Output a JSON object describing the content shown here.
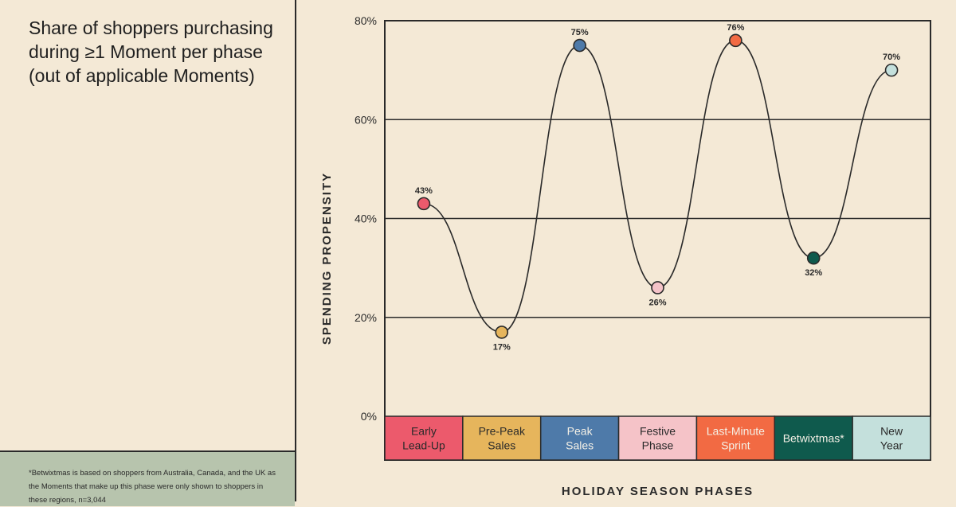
{
  "title": "Share of shoppers purchasing\nduring ≥1 Moment per phase\n(out of applicable Moments)",
  "footnote": "*Betwixtmas is based on shoppers from Australia, Canada, and the UK as the Moments that make up this phase were only shown to shoppers in these regions, n=3,044",
  "chart_data": {
    "type": "line",
    "title": "Share of shoppers purchasing during ≥1 Moment per phase (out of applicable Moments)",
    "xlabel": "HOLIDAY SEASON PHASES",
    "ylabel": "SPENDING PROPENSITY",
    "ylim": [
      0,
      80
    ],
    "yticks": [
      0,
      20,
      40,
      60,
      80
    ],
    "ytick_labels": [
      "0%",
      "20%",
      "40%",
      "60%",
      "80%"
    ],
    "gridlines": [
      20,
      40,
      60
    ],
    "categories": [
      {
        "label": "Early\nLead-Up",
        "color": "#ec5a6c",
        "text_color": "#2a2a2a"
      },
      {
        "label": "Pre-Peak\nSales",
        "color": "#e6b55c",
        "text_color": "#2a2a2a"
      },
      {
        "label": "Peak\nSales",
        "color": "#4e7aa9",
        "text_color": "#f4f0e6"
      },
      {
        "label": "Festive\nPhase",
        "color": "#f5c3c8",
        "text_color": "#2a2a2a"
      },
      {
        "label": "Last-Minute\nSprint",
        "color": "#f26a43",
        "text_color": "#f4f0e6"
      },
      {
        "label": "Betwixtmas*",
        "color": "#0f5a4d",
        "text_color": "#f4f0e6"
      },
      {
        "label": "New\nYear",
        "color": "#c4e0dc",
        "text_color": "#2a2a2a"
      }
    ],
    "values": [
      43,
      17,
      75,
      26,
      76,
      32,
      70
    ],
    "data_labels": [
      "43%",
      "17%",
      "75%",
      "26%",
      "76%",
      "32%",
      "70%"
    ],
    "label_positions": [
      "above",
      "below",
      "above",
      "below",
      "above",
      "below",
      "above"
    ]
  }
}
